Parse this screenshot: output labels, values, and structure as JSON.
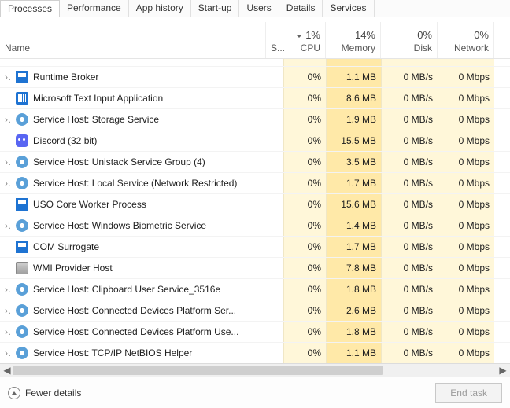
{
  "tabs": {
    "items": [
      "Processes",
      "Performance",
      "App history",
      "Start-up",
      "Users",
      "Details",
      "Services"
    ],
    "active_index": 0
  },
  "columns": {
    "name_label": "Name",
    "status_label": "S...",
    "cpu": {
      "pct": "1%",
      "label": "CPU",
      "sorted": true
    },
    "memory": {
      "pct": "14%",
      "label": "Memory"
    },
    "disk": {
      "pct": "0%",
      "label": "Disk"
    },
    "network": {
      "pct": "0%",
      "label": "Network"
    },
    "heat_colors": {
      "cpu": "#fff7d9",
      "memory": "#ffe9a8",
      "disk": "#fff7d9",
      "network": "#fff7d9"
    }
  },
  "rows": [
    {
      "cutoff": true,
      "expandable": false,
      "icon": "",
      "name": "",
      "cpu": "",
      "mem": "",
      "disk": "",
      "net": ""
    },
    {
      "expandable": true,
      "icon": "window",
      "name": "Runtime Broker",
      "cpu": "0%",
      "mem": "1.1 MB",
      "disk": "0 MB/s",
      "net": "0 Mbps"
    },
    {
      "expandable": false,
      "icon": "keyboard",
      "name": "Microsoft Text Input Application",
      "cpu": "0%",
      "mem": "8.6 MB",
      "disk": "0 MB/s",
      "net": "0 Mbps"
    },
    {
      "expandable": true,
      "icon": "gear",
      "name": "Service Host: Storage Service",
      "cpu": "0%",
      "mem": "1.9 MB",
      "disk": "0 MB/s",
      "net": "0 Mbps"
    },
    {
      "expandable": false,
      "icon": "discord",
      "name": "Discord (32 bit)",
      "cpu": "0%",
      "mem": "15.5 MB",
      "disk": "0 MB/s",
      "net": "0 Mbps"
    },
    {
      "expandable": true,
      "icon": "gear",
      "name": "Service Host: Unistack Service Group (4)",
      "cpu": "0%",
      "mem": "3.5 MB",
      "disk": "0 MB/s",
      "net": "0 Mbps"
    },
    {
      "expandable": true,
      "icon": "gear",
      "name": "Service Host: Local Service (Network Restricted)",
      "cpu": "0%",
      "mem": "1.7 MB",
      "disk": "0 MB/s",
      "net": "0 Mbps"
    },
    {
      "expandable": false,
      "icon": "window",
      "name": "USO Core Worker Process",
      "cpu": "0%",
      "mem": "15.6 MB",
      "disk": "0 MB/s",
      "net": "0 Mbps"
    },
    {
      "expandable": true,
      "icon": "gear",
      "name": "Service Host: Windows Biometric Service",
      "cpu": "0%",
      "mem": "1.4 MB",
      "disk": "0 MB/s",
      "net": "0 Mbps"
    },
    {
      "expandable": false,
      "icon": "window",
      "name": "COM Surrogate",
      "cpu": "0%",
      "mem": "1.7 MB",
      "disk": "0 MB/s",
      "net": "0 Mbps"
    },
    {
      "expandable": false,
      "icon": "wmi",
      "name": "WMI Provider Host",
      "cpu": "0%",
      "mem": "7.8 MB",
      "disk": "0 MB/s",
      "net": "0 Mbps"
    },
    {
      "expandable": true,
      "icon": "gear",
      "name": "Service Host: Clipboard User Service_3516e",
      "cpu": "0%",
      "mem": "1.8 MB",
      "disk": "0 MB/s",
      "net": "0 Mbps"
    },
    {
      "expandable": true,
      "icon": "gear",
      "name": "Service Host: Connected Devices Platform Ser...",
      "cpu": "0%",
      "mem": "2.6 MB",
      "disk": "0 MB/s",
      "net": "0 Mbps"
    },
    {
      "expandable": true,
      "icon": "gear",
      "name": "Service Host: Connected Devices Platform Use...",
      "cpu": "0%",
      "mem": "1.8 MB",
      "disk": "0 MB/s",
      "net": "0 Mbps"
    },
    {
      "expandable": true,
      "icon": "gear",
      "name": "Service Host: TCP/IP NetBIOS Helper",
      "cpu": "0%",
      "mem": "1.1 MB",
      "disk": "0 MB/s",
      "net": "0 Mbps"
    }
  ],
  "footer": {
    "fewer_label": "Fewer details",
    "end_task_label": "End task",
    "end_task_enabled": false
  }
}
